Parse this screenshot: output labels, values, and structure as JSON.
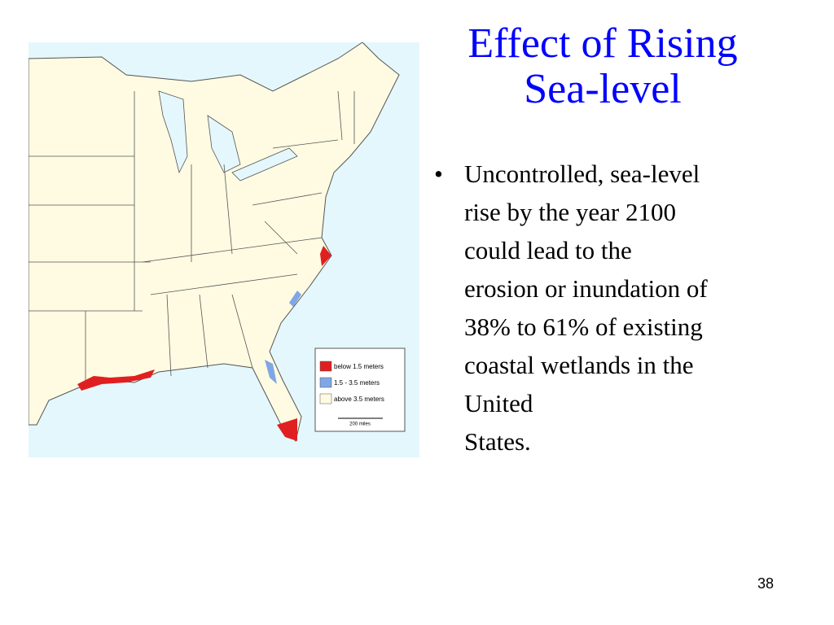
{
  "slide": {
    "title_lines": [
      "Effect of Rising",
      "Sea-level"
    ],
    "bullet_lines": [
      "Uncontrolled, sea-level",
      "rise by the year 2100",
      "could lead to the",
      "erosion or inundation of",
      "38% to 61% of existing",
      "coastal wetlands in the",
      "United",
      "States."
    ],
    "legend": [
      "below 1.5 meters",
      "1.5 - 3.5 meters",
      "above 3.5 meters"
    ],
    "scale": "200 miles",
    "page_number": "38"
  }
}
